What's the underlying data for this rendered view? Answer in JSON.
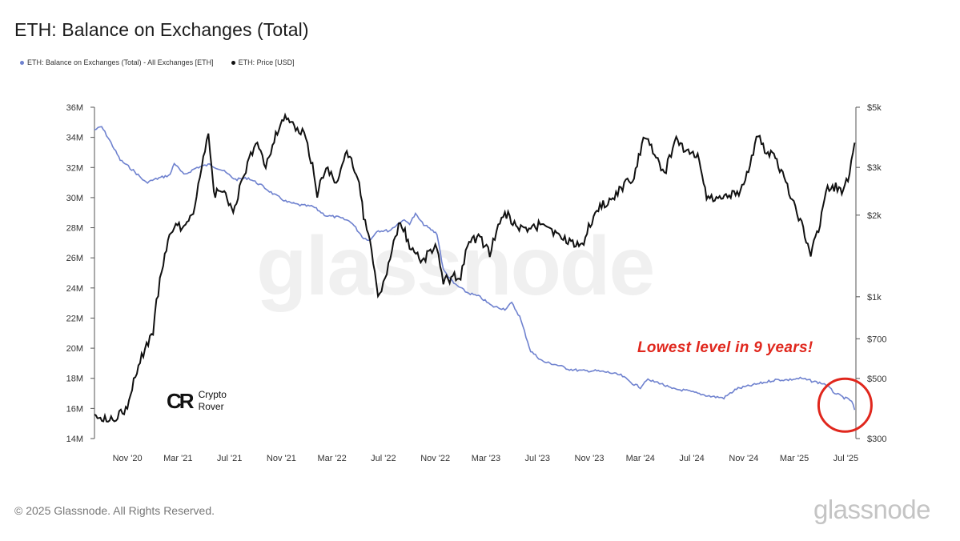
{
  "title": "ETH: Balance on Exchanges (Total)",
  "legend": {
    "balance": "ETH: Balance on Exchanges (Total) - All Exchanges [ETH]",
    "price": "ETH: Price [USD]"
  },
  "colors": {
    "balance": "#6f82cf",
    "price": "#111111",
    "annotation": "#e0271d",
    "circle": "#e0271d"
  },
  "annotation": "Lowest level in 9 years!",
  "brand": {
    "logo": "CR",
    "line1": "Crypto",
    "line2": "Rover"
  },
  "watermark": "glassnode",
  "copyright": "© 2025 Glassnode. All Rights Reserved.",
  "footer_logo": "glassnode",
  "chart_data": {
    "type": "line",
    "title": "ETH: Balance on Exchanges (Total)",
    "x_range": [
      "2020-08-15",
      "2025-07-25"
    ],
    "x_ticks": [
      {
        "date": "2020-11-01",
        "label": "Nov '20"
      },
      {
        "date": "2021-03-01",
        "label": "Mar '21"
      },
      {
        "date": "2021-07-01",
        "label": "Jul '21"
      },
      {
        "date": "2021-11-01",
        "label": "Nov '21"
      },
      {
        "date": "2022-03-01",
        "label": "Mar '22"
      },
      {
        "date": "2022-07-01",
        "label": "Jul '22"
      },
      {
        "date": "2022-11-01",
        "label": "Nov '22"
      },
      {
        "date": "2023-03-01",
        "label": "Mar '23"
      },
      {
        "date": "2023-07-01",
        "label": "Jul '23"
      },
      {
        "date": "2023-11-01",
        "label": "Nov '23"
      },
      {
        "date": "2024-03-01",
        "label": "Mar '24"
      },
      {
        "date": "2024-07-01",
        "label": "Jul '24"
      },
      {
        "date": "2024-11-01",
        "label": "Nov '24"
      },
      {
        "date": "2025-03-01",
        "label": "Mar '25"
      },
      {
        "date": "2025-07-01",
        "label": "Jul '25"
      }
    ],
    "y_left": {
      "scale": "linear",
      "range": [
        14000000,
        36000000
      ],
      "ticks": [
        {
          "value": 14000000,
          "label": "14M"
        },
        {
          "value": 16000000,
          "label": "16M"
        },
        {
          "value": 18000000,
          "label": "18M"
        },
        {
          "value": 20000000,
          "label": "20M"
        },
        {
          "value": 22000000,
          "label": "22M"
        },
        {
          "value": 24000000,
          "label": "24M"
        },
        {
          "value": 26000000,
          "label": "26M"
        },
        {
          "value": 28000000,
          "label": "28M"
        },
        {
          "value": 30000000,
          "label": "30M"
        },
        {
          "value": 32000000,
          "label": "32M"
        },
        {
          "value": 34000000,
          "label": "34M"
        },
        {
          "value": 36000000,
          "label": "36M"
        }
      ]
    },
    "y_right": {
      "scale": "log",
      "range": [
        300,
        5000
      ],
      "ticks": [
        {
          "value": 300,
          "label": "$300"
        },
        {
          "value": 500,
          "label": "$500"
        },
        {
          "value": 700,
          "label": "$700"
        },
        {
          "value": 1000,
          "label": "$1k"
        },
        {
          "value": 2000,
          "label": "$2k"
        },
        {
          "value": 3000,
          "label": "$3k"
        },
        {
          "value": 5000,
          "label": "$5k"
        }
      ]
    },
    "grid": false,
    "legend_position": "top-left",
    "series": [
      {
        "name": "ETH: Balance on Exchanges (Total) - All Exchanges [ETH]",
        "axis": "left",
        "points": [
          [
            "2020-08-15",
            34500000
          ],
          [
            "2020-09-01",
            34700000
          ],
          [
            "2020-09-20",
            33800000
          ],
          [
            "2020-10-15",
            32500000
          ],
          [
            "2020-11-15",
            31800000
          ],
          [
            "2020-12-15",
            31000000
          ],
          [
            "2021-01-15",
            31300000
          ],
          [
            "2021-02-10",
            31500000
          ],
          [
            "2021-02-20",
            32300000
          ],
          [
            "2021-03-15",
            31500000
          ],
          [
            "2021-04-15",
            32000000
          ],
          [
            "2021-05-15",
            32200000
          ],
          [
            "2021-06-15",
            31800000
          ],
          [
            "2021-07-15",
            31200000
          ],
          [
            "2021-08-15",
            31300000
          ],
          [
            "2021-09-15",
            30800000
          ],
          [
            "2021-10-15",
            30200000
          ],
          [
            "2021-11-15",
            29700000
          ],
          [
            "2021-12-15",
            29500000
          ],
          [
            "2022-01-15",
            29400000
          ],
          [
            "2022-02-15",
            28800000
          ],
          [
            "2022-03-15",
            28700000
          ],
          [
            "2022-04-15",
            28400000
          ],
          [
            "2022-05-15",
            27300000
          ],
          [
            "2022-06-01",
            27200000
          ],
          [
            "2022-06-15",
            27800000
          ],
          [
            "2022-07-15",
            27800000
          ],
          [
            "2022-08-15",
            28500000
          ],
          [
            "2022-09-01",
            28300000
          ],
          [
            "2022-09-15",
            28900000
          ],
          [
            "2022-10-01",
            28300000
          ],
          [
            "2022-10-15",
            28000000
          ],
          [
            "2022-11-05",
            27600000
          ],
          [
            "2022-11-20",
            25200000
          ],
          [
            "2022-12-15",
            24300000
          ],
          [
            "2023-01-15",
            23700000
          ],
          [
            "2023-02-15",
            23400000
          ],
          [
            "2023-03-15",
            22800000
          ],
          [
            "2023-04-15",
            22600000
          ],
          [
            "2023-05-01",
            23000000
          ],
          [
            "2023-05-20",
            22100000
          ],
          [
            "2023-06-15",
            19800000
          ],
          [
            "2023-07-15",
            19100000
          ],
          [
            "2023-08-15",
            18900000
          ],
          [
            "2023-09-15",
            18600000
          ],
          [
            "2023-10-15",
            18500000
          ],
          [
            "2023-11-15",
            18500000
          ],
          [
            "2023-12-15",
            18400000
          ],
          [
            "2024-01-15",
            18200000
          ],
          [
            "2024-02-15",
            17600000
          ],
          [
            "2024-03-01",
            17400000
          ],
          [
            "2024-03-15",
            17900000
          ],
          [
            "2024-04-15",
            17700000
          ],
          [
            "2024-05-15",
            17300000
          ],
          [
            "2024-06-15",
            17200000
          ],
          [
            "2024-07-15",
            17000000
          ],
          [
            "2024-08-15",
            16800000
          ],
          [
            "2024-09-15",
            16700000
          ],
          [
            "2024-10-15",
            17300000
          ],
          [
            "2024-11-15",
            17500000
          ],
          [
            "2024-12-15",
            17700000
          ],
          [
            "2025-01-15",
            17900000
          ],
          [
            "2025-02-15",
            17900000
          ],
          [
            "2025-03-15",
            18000000
          ],
          [
            "2025-04-15",
            17800000
          ],
          [
            "2025-05-15",
            17600000
          ],
          [
            "2025-06-01",
            17100000
          ],
          [
            "2025-06-20",
            16800000
          ],
          [
            "2025-07-15",
            16500000
          ],
          [
            "2025-07-22",
            15900000
          ]
        ]
      },
      {
        "name": "ETH: Price [USD]",
        "axis": "right",
        "points": [
          [
            "2020-08-15",
            380
          ],
          [
            "2020-09-05",
            350
          ],
          [
            "2020-10-01",
            360
          ],
          [
            "2020-11-01",
            385
          ],
          [
            "2020-12-01",
            580
          ],
          [
            "2021-01-01",
            740
          ],
          [
            "2021-01-25",
            1350
          ],
          [
            "2021-02-20",
            1850
          ],
          [
            "2021-03-15",
            1800
          ],
          [
            "2021-04-10",
            2150
          ],
          [
            "2021-05-12",
            3850
          ],
          [
            "2021-05-25",
            2400
          ],
          [
            "2021-06-15",
            2450
          ],
          [
            "2021-07-10",
            2050
          ],
          [
            "2021-08-05",
            2800
          ],
          [
            "2021-09-05",
            3800
          ],
          [
            "2021-09-25",
            3000
          ],
          [
            "2021-10-15",
            3800
          ],
          [
            "2021-11-10",
            4700
          ],
          [
            "2021-12-05",
            4100
          ],
          [
            "2021-12-25",
            4000
          ],
          [
            "2022-01-10",
            3200
          ],
          [
            "2022-01-25",
            2400
          ],
          [
            "2022-02-15",
            3000
          ],
          [
            "2022-03-15",
            2600
          ],
          [
            "2022-04-05",
            3450
          ],
          [
            "2022-05-01",
            2800
          ],
          [
            "2022-05-15",
            2000
          ],
          [
            "2022-06-18",
            1000
          ],
          [
            "2022-07-05",
            1150
          ],
          [
            "2022-08-10",
            1900
          ],
          [
            "2022-09-01",
            1550
          ],
          [
            "2022-10-01",
            1350
          ],
          [
            "2022-11-01",
            1550
          ],
          [
            "2022-11-20",
            1150
          ],
          [
            "2022-12-31",
            1200
          ],
          [
            "2023-01-20",
            1580
          ],
          [
            "2023-02-15",
            1650
          ],
          [
            "2023-03-10",
            1450
          ],
          [
            "2023-04-15",
            2050
          ],
          [
            "2023-05-15",
            1800
          ],
          [
            "2023-06-15",
            1750
          ],
          [
            "2023-07-15",
            1900
          ],
          [
            "2023-08-20",
            1650
          ],
          [
            "2023-09-15",
            1600
          ],
          [
            "2023-10-15",
            1550
          ],
          [
            "2023-11-15",
            2050
          ],
          [
            "2023-12-15",
            2250
          ],
          [
            "2024-01-15",
            2500
          ],
          [
            "2024-02-15",
            2800
          ],
          [
            "2024-03-12",
            3950
          ],
          [
            "2024-04-15",
            3050
          ],
          [
            "2024-05-01",
            2950
          ],
          [
            "2024-05-25",
            3800
          ],
          [
            "2024-06-15",
            3500
          ],
          [
            "2024-07-15",
            3300
          ],
          [
            "2024-08-05",
            2350
          ],
          [
            "2024-09-05",
            2300
          ],
          [
            "2024-10-05",
            2400
          ],
          [
            "2024-11-01",
            2500
          ],
          [
            "2024-12-05",
            3900
          ],
          [
            "2024-12-25",
            3350
          ],
          [
            "2025-01-15",
            3300
          ],
          [
            "2025-02-05",
            2700
          ],
          [
            "2025-03-15",
            1900
          ],
          [
            "2025-04-09",
            1450
          ],
          [
            "2025-05-01",
            1800
          ],
          [
            "2025-05-15",
            2500
          ],
          [
            "2025-06-15",
            2550
          ],
          [
            "2025-06-25",
            2400
          ],
          [
            "2025-07-10",
            2900
          ],
          [
            "2025-07-22",
            3700
          ]
        ]
      }
    ]
  }
}
